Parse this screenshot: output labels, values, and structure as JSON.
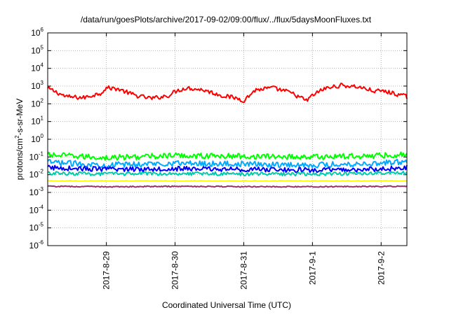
{
  "chart_data": {
    "type": "line",
    "title": "/data/run/goesPlots/archive/2017-09-02/09:00/flux/../flux/5daysMoonFluxes.txt",
    "xlabel": "Coordinated Universal Time (UTC)",
    "ylabel": {
      "base": "protons/cm",
      "sup": "2",
      "rest": "-s-sr-MeV"
    },
    "yscale": "log",
    "ylim_exponents": [
      -6,
      6
    ],
    "y_ticks": [
      {
        "base": "10",
        "exp": "-6"
      },
      {
        "base": "10",
        "exp": "-5"
      },
      {
        "base": "10",
        "exp": "-4"
      },
      {
        "base": "10",
        "exp": "-3"
      },
      {
        "base": "10",
        "exp": "-2"
      },
      {
        "base": "10",
        "exp": "-1"
      },
      {
        "base": "10",
        "exp": "0"
      },
      {
        "base": "10",
        "exp": "1"
      },
      {
        "base": "10",
        "exp": "2"
      },
      {
        "base": "10",
        "exp": "3"
      },
      {
        "base": "10",
        "exp": "4"
      },
      {
        "base": "10",
        "exp": "5"
      },
      {
        "base": "10",
        "exp": "6"
      }
    ],
    "x_range": [
      "2017-08-28 03:30",
      "2017-09-02 09:00"
    ],
    "x_ticks": [
      "2017-8-29",
      "2017-8-30",
      "2017-8-31",
      "2017-9-1",
      "2017-9-2"
    ],
    "grid": true,
    "series": [
      {
        "color": "#ff0000",
        "x": [
          "2017-08-28 04:00",
          "2017-08-28 10:00",
          "2017-08-28 16:00",
          "2017-08-28 22:00",
          "2017-08-29 00:00",
          "2017-08-29 04:00",
          "2017-08-29 10:00",
          "2017-08-29 16:00",
          "2017-08-29 22:00",
          "2017-08-30 00:00",
          "2017-08-30 04:00",
          "2017-08-30 10:00",
          "2017-08-30 16:00",
          "2017-08-30 22:00",
          "2017-08-31 00:00",
          "2017-08-31 04:00",
          "2017-08-31 10:00",
          "2017-08-31 16:00",
          "2017-08-31 22:00",
          "2017-09-01 00:00",
          "2017-09-01 04:00",
          "2017-09-01 10:00",
          "2017-09-01 16:00",
          "2017-09-01 22:00",
          "2017-09-02 00:00",
          "2017-09-02 04:00",
          "2017-09-02 09:00"
        ],
        "y": [
          700,
          250,
          220,
          400,
          800,
          700,
          300,
          200,
          300,
          500,
          800,
          600,
          300,
          200,
          150,
          600,
          800,
          450,
          150,
          300,
          700,
          1100,
          900,
          500,
          550,
          400,
          250
        ]
      },
      {
        "color": "#00ff00",
        "x": [
          "2017-08-28 04:00",
          "2017-08-29 00:00",
          "2017-08-30 00:00",
          "2017-08-31 00:00",
          "2017-09-01 00:00",
          "2017-09-02 00:00",
          "2017-09-02 09:00"
        ],
        "y": [
          0.13,
          0.09,
          0.12,
          0.11,
          0.1,
          0.12,
          0.14
        ]
      },
      {
        "color": "#00aaff",
        "x": [
          "2017-08-28 04:00",
          "2017-08-29 00:00",
          "2017-08-30 00:00",
          "2017-08-31 00:00",
          "2017-09-01 00:00",
          "2017-09-02 00:00",
          "2017-09-02 09:00"
        ],
        "y": [
          0.05,
          0.035,
          0.045,
          0.04,
          0.035,
          0.045,
          0.055
        ]
      },
      {
        "color": "#0000ff",
        "x": [
          "2017-08-28 04:00",
          "2017-08-29 00:00",
          "2017-08-30 00:00",
          "2017-08-31 00:00",
          "2017-09-01 00:00",
          "2017-09-02 00:00",
          "2017-09-02 09:00"
        ],
        "y": [
          0.025,
          0.02,
          0.022,
          0.02,
          0.018,
          0.02,
          0.025
        ]
      },
      {
        "color": "#00ccaa",
        "x": [
          "2017-08-28 04:00",
          "2017-08-29 00:00",
          "2017-08-30 00:00",
          "2017-08-31 00:00",
          "2017-09-01 00:00",
          "2017-09-02 00:00",
          "2017-09-02 09:00"
        ],
        "y": [
          0.012,
          0.011,
          0.012,
          0.011,
          0.011,
          0.012,
          0.012
        ]
      },
      {
        "color": "#ffff00",
        "x": [
          "2017-08-28 04:00",
          "2017-08-29 00:00",
          "2017-08-30 00:00",
          "2017-08-31 00:00",
          "2017-09-01 00:00",
          "2017-09-02 00:00",
          "2017-09-02 09:00"
        ],
        "y": [
          0.0045,
          0.0045,
          0.0045,
          0.0045,
          0.0045,
          0.0045,
          0.0045
        ]
      },
      {
        "color": "#993366",
        "x": [
          "2017-08-28 04:00",
          "2017-08-29 00:00",
          "2017-08-30 00:00",
          "2017-08-31 00:00",
          "2017-09-01 00:00",
          "2017-09-02 00:00",
          "2017-09-02 09:00"
        ],
        "y": [
          0.0022,
          0.0021,
          0.0022,
          0.0021,
          0.0021,
          0.0022,
          0.0022
        ]
      }
    ]
  }
}
